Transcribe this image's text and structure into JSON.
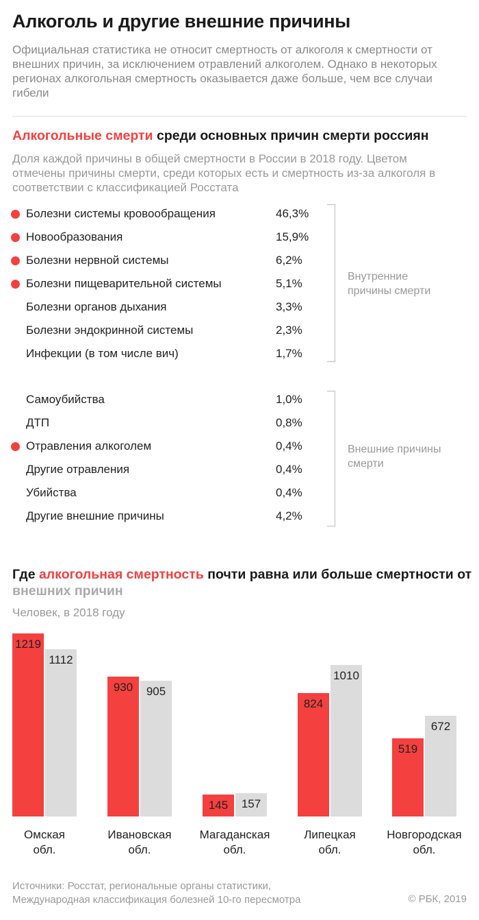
{
  "title": "Алкоголь и другие внешние причины",
  "lead": "Официальная статистика не относит смертность от алкоголя к смертности от внешних причин, за исключением отравлений алкоголем. Однако в некоторых регионах алкогольная смертность оказывается даже больше, чем все случаи гибели",
  "section1": {
    "title_red": "Алкогольные смерти",
    "title_rest": " среди основных причин смерти россиян",
    "subtitle": "Доля каждой причины в общей смертности в России в 2018 году. Цветом отмечены причины смерти, среди которых есть и смертность из-за алкоголя в соответствии с классификацией Росстата",
    "internal_label": "Внутренние причины смерти",
    "external_label": "Внешние причины смерти",
    "internal": [
      {
        "name": "Болезни системы кровообращения",
        "value": "46,3%",
        "alcohol": true
      },
      {
        "name": "Новообразования",
        "value": "15,9%",
        "alcohol": true
      },
      {
        "name": "Болезни нервной системы",
        "value": "6,2%",
        "alcohol": true
      },
      {
        "name": "Болезни пищеварительной системы",
        "value": "5,1%",
        "alcohol": true
      },
      {
        "name": "Болезни органов дыхания",
        "value": "3,3%",
        "alcohol": false
      },
      {
        "name": "Болезни эндокринной системы",
        "value": "2,3%",
        "alcohol": false
      },
      {
        "name": "Инфекции (в том числе вич)",
        "value": "1,7%",
        "alcohol": false
      }
    ],
    "external": [
      {
        "name": "Самоубийства",
        "value": "1,0%",
        "alcohol": false
      },
      {
        "name": "ДТП",
        "value": "0,8%",
        "alcohol": false
      },
      {
        "name": "Отравления алкоголем",
        "value": "0,4%",
        "alcohol": true
      },
      {
        "name": "Другие отравления",
        "value": "0,4%",
        "alcohol": false
      },
      {
        "name": "Убийства",
        "value": "0,4%",
        "alcohol": false
      },
      {
        "name": "Другие внешние причины",
        "value": "4,2%",
        "alcohol": false
      }
    ]
  },
  "chart_data": {
    "type": "bar",
    "title_parts": [
      "Где ",
      "алкогольная смертность",
      " почти равна или больше смертности от ",
      "внешних причин"
    ],
    "subtitle": "Человек, в 2018 году",
    "categories": [
      "Омская обл.",
      "Ивановская обл.",
      "Магаданская обл.",
      "Липецкая обл.",
      "Новгородская обл."
    ],
    "series": [
      {
        "name": "алкогольная смертность",
        "color": "#f4403f",
        "values": [
          1219,
          930,
          145,
          824,
          519
        ]
      },
      {
        "name": "внешние причины",
        "color": "#dcdcdc",
        "values": [
          1112,
          905,
          157,
          1010,
          672
        ]
      }
    ],
    "ylim": [
      0,
      1219
    ]
  },
  "footer": {
    "sources": "Источники: Росстат, региональные органы статистики,",
    "sources2": "Международная классификация болезней 10-го пересмотра",
    "copyright": "© РБК, 2019"
  }
}
